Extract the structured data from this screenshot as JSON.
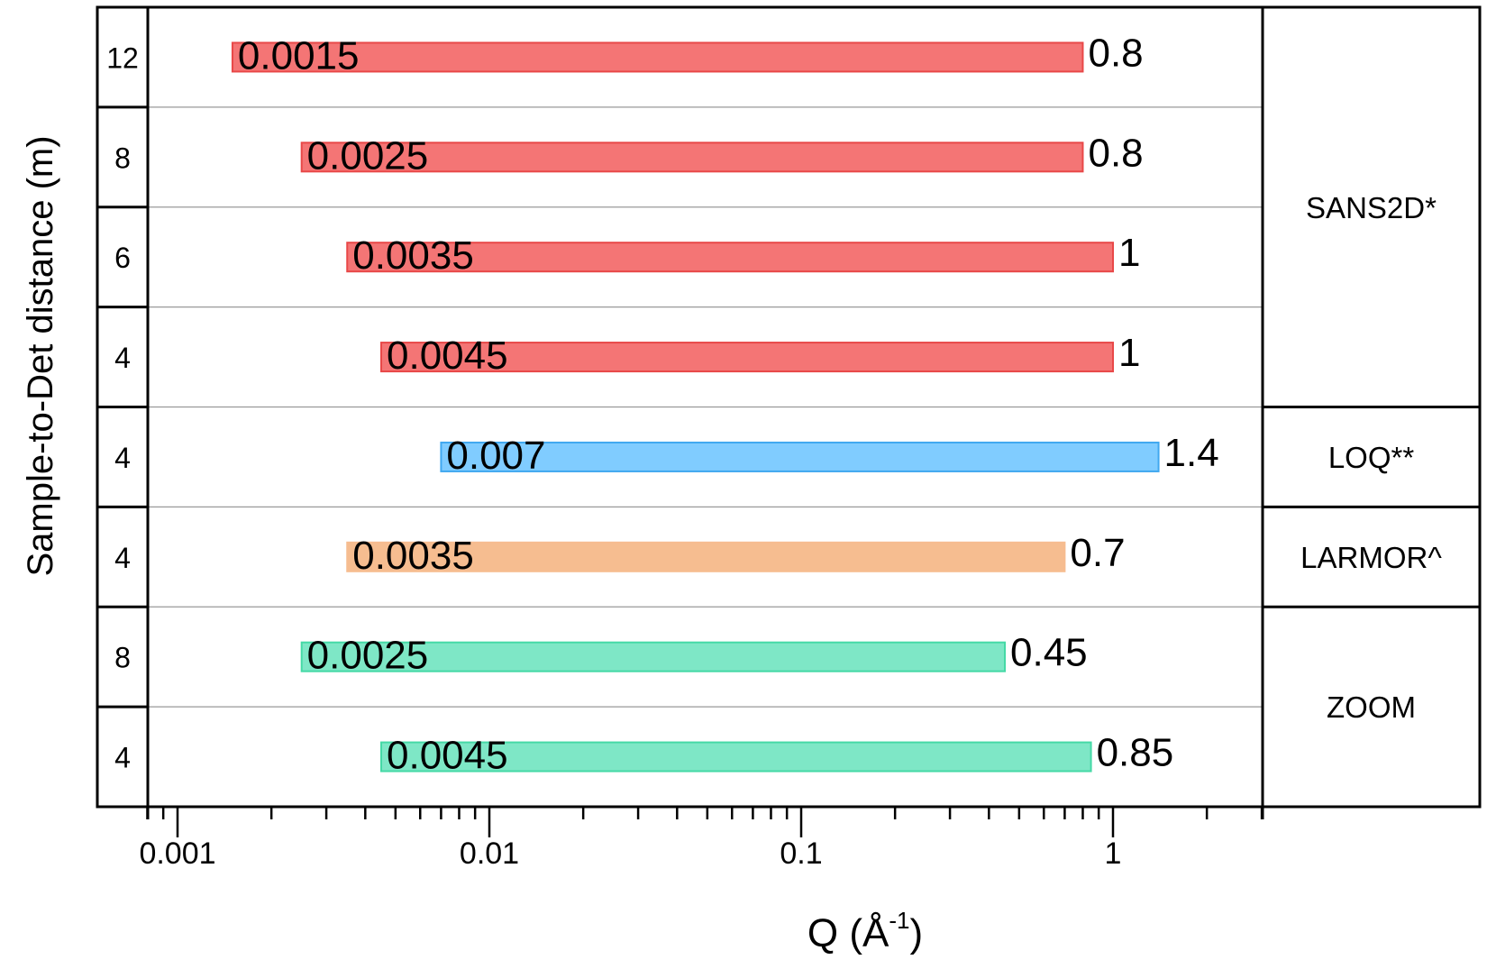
{
  "chart_data": {
    "type": "bar",
    "subtype": "floating-range-horizontal",
    "xlabel": "Q (Å",
    "xlabel_sup": "-1",
    "xlabel_close": ")",
    "ylabel": "Sample-to-Det distance (m)",
    "xscale": "log",
    "xlim": [
      0.0008,
      3
    ],
    "xticks": [
      0.001,
      0.01,
      0.1,
      1
    ],
    "xtick_labels": [
      "0.001",
      "0.01",
      "0.1",
      "1"
    ],
    "grid": "horizontal row separators",
    "rows": [
      {
        "distance": "12",
        "qmin": 0.0015,
        "qmax": 0.8,
        "qmin_label": "0.0015",
        "qmax_label": "0.8",
        "instrument": "SANS2D*"
      },
      {
        "distance": "8",
        "qmin": 0.0025,
        "qmax": 0.8,
        "qmin_label": "0.0025",
        "qmax_label": "0.8",
        "instrument": "SANS2D*"
      },
      {
        "distance": "6",
        "qmin": 0.0035,
        "qmax": 1,
        "qmin_label": "0.0035",
        "qmax_label": "1",
        "instrument": "SANS2D*"
      },
      {
        "distance": "4",
        "qmin": 0.0045,
        "qmax": 1,
        "qmin_label": "0.0045",
        "qmax_label": "1",
        "instrument": "SANS2D*"
      },
      {
        "distance": "4",
        "qmin": 0.007,
        "qmax": 1.4,
        "qmin_label": "0.007",
        "qmax_label": "1.4",
        "instrument": "LOQ**"
      },
      {
        "distance": "4",
        "qmin": 0.0035,
        "qmax": 0.7,
        "qmin_label": "0.0035",
        "qmax_label": "0.7",
        "instrument": "LARMOR^"
      },
      {
        "distance": "8",
        "qmin": 0.0025,
        "qmax": 0.45,
        "qmin_label": "0.0025",
        "qmax_label": "0.45",
        "instrument": "ZOOM"
      },
      {
        "distance": "4",
        "qmin": 0.0045,
        "qmax": 0.85,
        "qmin_label": "0.0045",
        "qmax_label": "0.85",
        "instrument": "ZOOM"
      }
    ],
    "instruments": [
      {
        "name": "SANS2D*",
        "rows": 4,
        "color": "#F47575",
        "edge": "#E84848"
      },
      {
        "name": "LOQ**",
        "rows": 1,
        "color": "#80CCFF",
        "edge": "#40A8F0"
      },
      {
        "name": "LARMOR^",
        "rows": 1,
        "color": "#F6BD90",
        "edge": "#F6BD90"
      },
      {
        "name": "ZOOM",
        "rows": 2,
        "color": "#7EE7C6",
        "edge": "#45D9A6"
      }
    ]
  }
}
